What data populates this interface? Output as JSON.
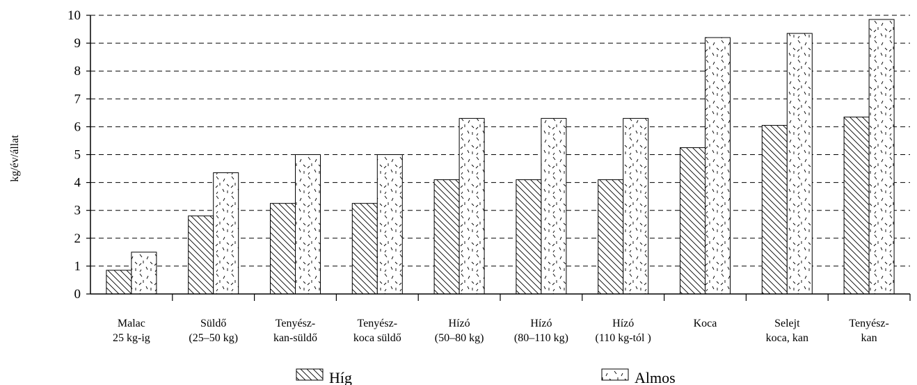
{
  "chart_data": {
    "type": "bar",
    "ylabel": "kg/év/állat",
    "ylim": [
      0,
      10
    ],
    "yticks": [
      "0",
      "1",
      "2",
      "3",
      "4",
      "5",
      "6",
      "7",
      "8",
      "9",
      "10"
    ],
    "grid": true,
    "legend_position": "bottom",
    "categories": [
      [
        "Malac",
        "25 kg-ig"
      ],
      [
        "Süldő",
        "(25–50 kg)"
      ],
      [
        "Tenyész-",
        "kan-süldő"
      ],
      [
        "Tenyész-",
        "koca süldő"
      ],
      [
        "Hízó",
        "(50–80 kg)"
      ],
      [
        "Hízó",
        "(80–110 kg)"
      ],
      [
        "Hízó",
        "(110 kg-tól )"
      ],
      [
        "Koca",
        ""
      ],
      [
        "Selejt",
        "koca, kan"
      ],
      [
        "Tenyész-",
        "kan"
      ]
    ],
    "series": [
      {
        "name": "Híg",
        "pattern": "diagonal-hatch",
        "values": [
          0.85,
          2.8,
          3.25,
          3.25,
          4.1,
          4.1,
          4.1,
          5.25,
          6.05,
          6.35
        ]
      },
      {
        "name": "Almos",
        "pattern": "dash-stipple",
        "values": [
          1.5,
          4.35,
          5.0,
          5.0,
          6.3,
          6.3,
          6.3,
          9.2,
          9.35,
          9.85
        ]
      }
    ]
  }
}
